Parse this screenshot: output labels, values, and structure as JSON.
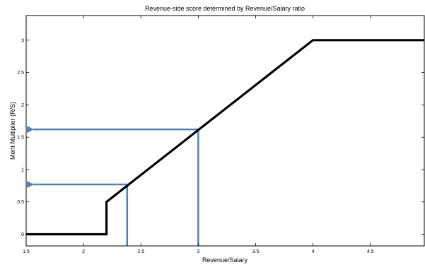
{
  "chart_data": {
    "type": "line",
    "title": "Revenue-side score determined by Revenue/Salary ratio",
    "xlabel": "Revenue/Salary",
    "ylabel": "Merit Multiplier (R/S)",
    "xlim": [
      1.5,
      4.97
    ],
    "ylim": [
      -0.18,
      3.38
    ],
    "xticks": [
      1.5,
      2,
      2.5,
      3,
      3.5,
      4,
      4.5
    ],
    "xtick_labels": [
      "1.5",
      "2",
      "2.5",
      "3",
      "3.5",
      "4",
      "4.5"
    ],
    "yticks": [
      0,
      0.5,
      1,
      1.5,
      2,
      2.5,
      3
    ],
    "ytick_labels": [
      "0",
      "0.5",
      "1",
      "1.5",
      "2",
      "2.5",
      "3"
    ],
    "grid": false,
    "series": [
      {
        "color": "#000000",
        "x": [
          1.5,
          2.2,
          2.2,
          4.0,
          4.97
        ],
        "y": [
          0,
          0,
          0.5,
          3.0,
          3.0
        ]
      }
    ],
    "annotations": [
      {
        "type": "lookup-arrow",
        "color": "#4f81bd",
        "x": 2.38,
        "y": 0.77
      },
      {
        "type": "lookup-arrow",
        "color": "#4f81bd",
        "x": 3.0,
        "y": 1.62
      }
    ]
  }
}
